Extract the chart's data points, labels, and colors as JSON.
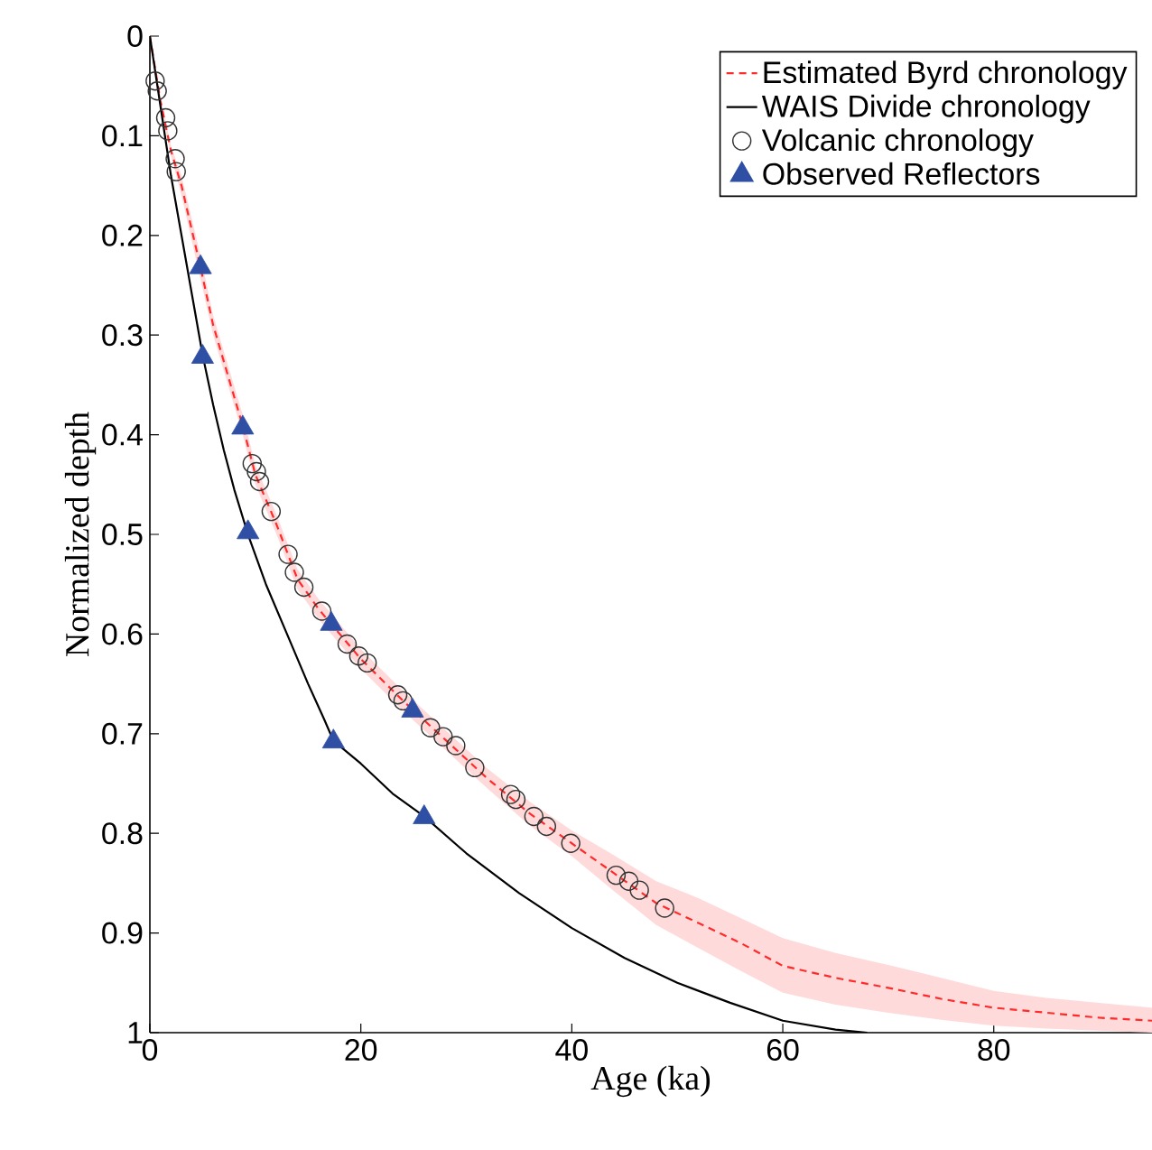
{
  "chart_data": {
    "type": "line",
    "xlabel": "Age (ka)",
    "ylabel": "Normalized depth",
    "xlim": [
      0,
      95
    ],
    "ylim": [
      1,
      0
    ],
    "xticks": [
      0,
      20,
      40,
      60,
      80
    ],
    "yticks": [
      0,
      0.1,
      0.2,
      0.3,
      0.4,
      0.5,
      0.6,
      0.7,
      0.8,
      0.9,
      1
    ],
    "legend": "top right",
    "grid": false,
    "series": [
      {
        "name": "Estimated Byrd chronology",
        "color": "#ff2a2a",
        "line_style": "dashed",
        "marker": "none",
        "x": [
          0,
          1,
          2,
          3,
          4.8,
          6,
          8.8,
          10,
          12,
          14,
          16,
          18,
          20,
          24,
          28,
          32,
          36,
          40,
          44,
          48,
          52,
          56,
          60,
          65,
          70,
          75,
          80,
          85,
          90,
          95
        ],
        "values": [
          0,
          0.065,
          0.115,
          0.15,
          0.232,
          0.29,
          0.391,
          0.44,
          0.49,
          0.545,
          0.575,
          0.6,
          0.625,
          0.667,
          0.706,
          0.745,
          0.78,
          0.81,
          0.84,
          0.87,
          0.89,
          0.91,
          0.933,
          0.945,
          0.955,
          0.966,
          0.975,
          0.98,
          0.985,
          0.988
        ],
        "lower": [
          0,
          0.06,
          0.11,
          0.14,
          0.22,
          0.28,
          0.38,
          0.43,
          0.48,
          0.535,
          0.565,
          0.59,
          0.615,
          0.657,
          0.696,
          0.735,
          0.768,
          0.797,
          0.822,
          0.848,
          0.865,
          0.885,
          0.905,
          0.92,
          0.932,
          0.945,
          0.958,
          0.965,
          0.97,
          0.975
        ],
        "upper": [
          0,
          0.07,
          0.12,
          0.16,
          0.244,
          0.3,
          0.4,
          0.45,
          0.5,
          0.555,
          0.585,
          0.61,
          0.635,
          0.677,
          0.716,
          0.755,
          0.792,
          0.823,
          0.858,
          0.892,
          0.915,
          0.938,
          0.96,
          0.972,
          0.98,
          0.987,
          0.993,
          0.996,
          0.998,
          1
        ]
      },
      {
        "name": "WAIS Divide chronology",
        "color": "#000000",
        "line_style": "solid",
        "marker": "none",
        "x": [
          0,
          1,
          2,
          3,
          4,
          5,
          6,
          7,
          8,
          9.3,
          11,
          13,
          15,
          16.5,
          17.4,
          20,
          23,
          26,
          30,
          35,
          40,
          45,
          50,
          55,
          60,
          65,
          68
        ],
        "values": [
          0,
          0.07,
          0.14,
          0.2,
          0.26,
          0.32,
          0.37,
          0.415,
          0.455,
          0.5,
          0.55,
          0.6,
          0.65,
          0.685,
          0.707,
          0.73,
          0.76,
          0.783,
          0.82,
          0.86,
          0.895,
          0.925,
          0.95,
          0.97,
          0.988,
          0.997,
          1
        ]
      },
      {
        "name": "Volcanic chronology",
        "type": "scatter",
        "color": "#333333",
        "marker": "circle",
        "line_style": "none",
        "x": [
          0.5,
          0.7,
          1.5,
          1.7,
          2.4,
          2.5,
          9.7,
          10.1,
          10.4,
          11.5,
          13.1,
          13.7,
          14.6,
          16.3,
          18.7,
          19.8,
          20.6,
          23.5,
          24,
          26.6,
          27.8,
          29,
          30.8,
          34.2,
          34.7,
          36.4,
          37.6,
          39.9,
          44.2,
          45.4,
          46.4,
          48.8
        ],
        "values": [
          0.045,
          0.055,
          0.082,
          0.095,
          0.123,
          0.136,
          0.429,
          0.437,
          0.447,
          0.477,
          0.52,
          0.538,
          0.553,
          0.577,
          0.61,
          0.622,
          0.629,
          0.661,
          0.667,
          0.694,
          0.703,
          0.712,
          0.734,
          0.761,
          0.766,
          0.783,
          0.793,
          0.81,
          0.842,
          0.848,
          0.857,
          0.875
        ]
      },
      {
        "name": "Observed Reflectors",
        "type": "scatter",
        "color": "#2e4fa3",
        "marker": "triangle",
        "line_style": "none",
        "x": [
          4.8,
          5,
          8.8,
          9.3,
          17.2,
          17.4,
          24.9,
          26
        ],
        "values": [
          0.232,
          0.322,
          0.393,
          0.498,
          0.59,
          0.708,
          0.677,
          0.784
        ]
      }
    ]
  }
}
